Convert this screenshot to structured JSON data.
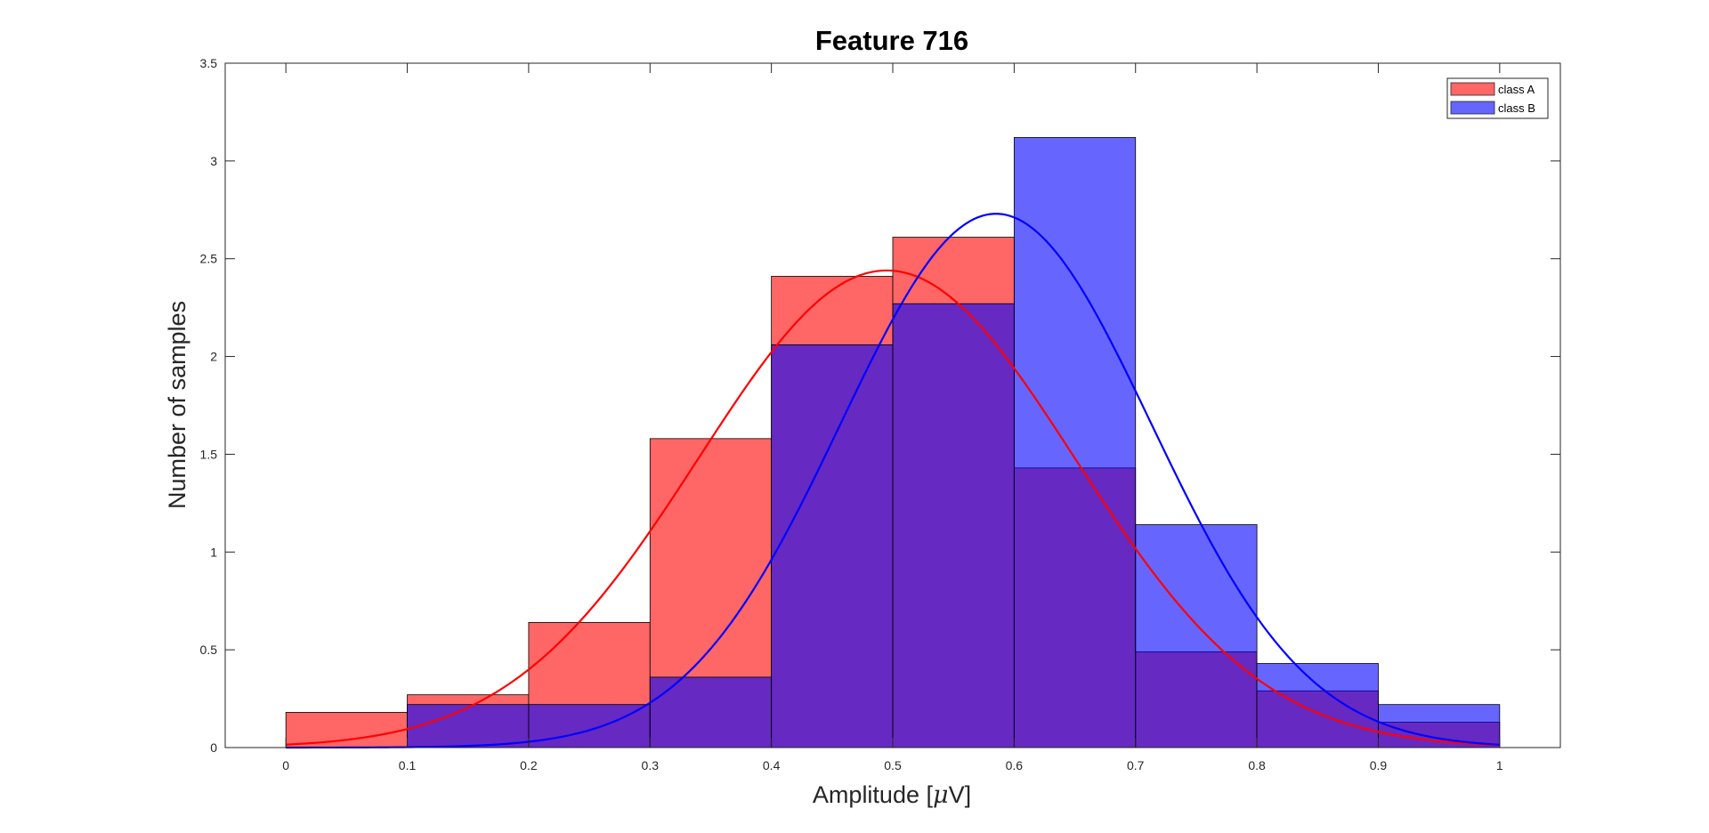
{
  "chart_data": {
    "type": "bar",
    "title": "Feature 716",
    "xlabel_prefix": "Amplitude [",
    "xlabel_mu": "μ",
    "xlabel_suffix": "V]",
    "ylabel": "Number of samples",
    "xlim": [
      -0.05,
      1.05
    ],
    "ylim": [
      0,
      3.5
    ],
    "xticks": [
      "0",
      "0.1",
      "0.2",
      "0.3",
      "0.4",
      "0.5",
      "0.6",
      "0.7",
      "0.8",
      "0.9",
      "1"
    ],
    "yticks": [
      "0",
      "0.5",
      "1",
      "1.5",
      "2",
      "2.5",
      "3",
      "3.5"
    ],
    "bin_edges": [
      0,
      0.1,
      0.2,
      0.3,
      0.4,
      0.5,
      0.6,
      0.7,
      0.8,
      0.9,
      1.0
    ],
    "legend_position": "top-right",
    "series": [
      {
        "name": "class A",
        "color": "#ff0000",
        "values": [
          0.18,
          0.27,
          0.64,
          1.58,
          2.41,
          2.61,
          1.43,
          0.49,
          0.29,
          0.13
        ],
        "fit": {
          "mean": 0.495,
          "peak": 2.44,
          "sigma": 0.155
        }
      },
      {
        "name": "class B",
        "color": "#0000ff",
        "values": [
          0.0,
          0.22,
          0.22,
          0.36,
          2.06,
          2.27,
          3.12,
          1.14,
          0.43,
          0.22
        ],
        "fit": {
          "mean": 0.585,
          "peak": 2.73,
          "sigma": 0.128
        }
      }
    ]
  }
}
